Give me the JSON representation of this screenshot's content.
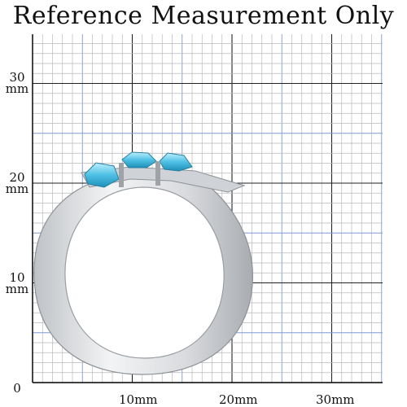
{
  "title": "Reference Measurement Only",
  "y_labels": [
    {
      "value": "30",
      "unit": "mm"
    },
    {
      "value": "20",
      "unit": "mm"
    },
    {
      "value": "10",
      "unit": "mm"
    },
    {
      "value": "0",
      "unit": ""
    }
  ],
  "x_labels": [
    "10mm",
    "20mm",
    "30mm"
  ],
  "colors": {
    "grid_minor": "#b9b9b9",
    "grid_major": "#222222",
    "grid_half": "#7f9ad6",
    "ring_metal": "#d9dbde",
    "gem": "#59c6e6"
  }
}
